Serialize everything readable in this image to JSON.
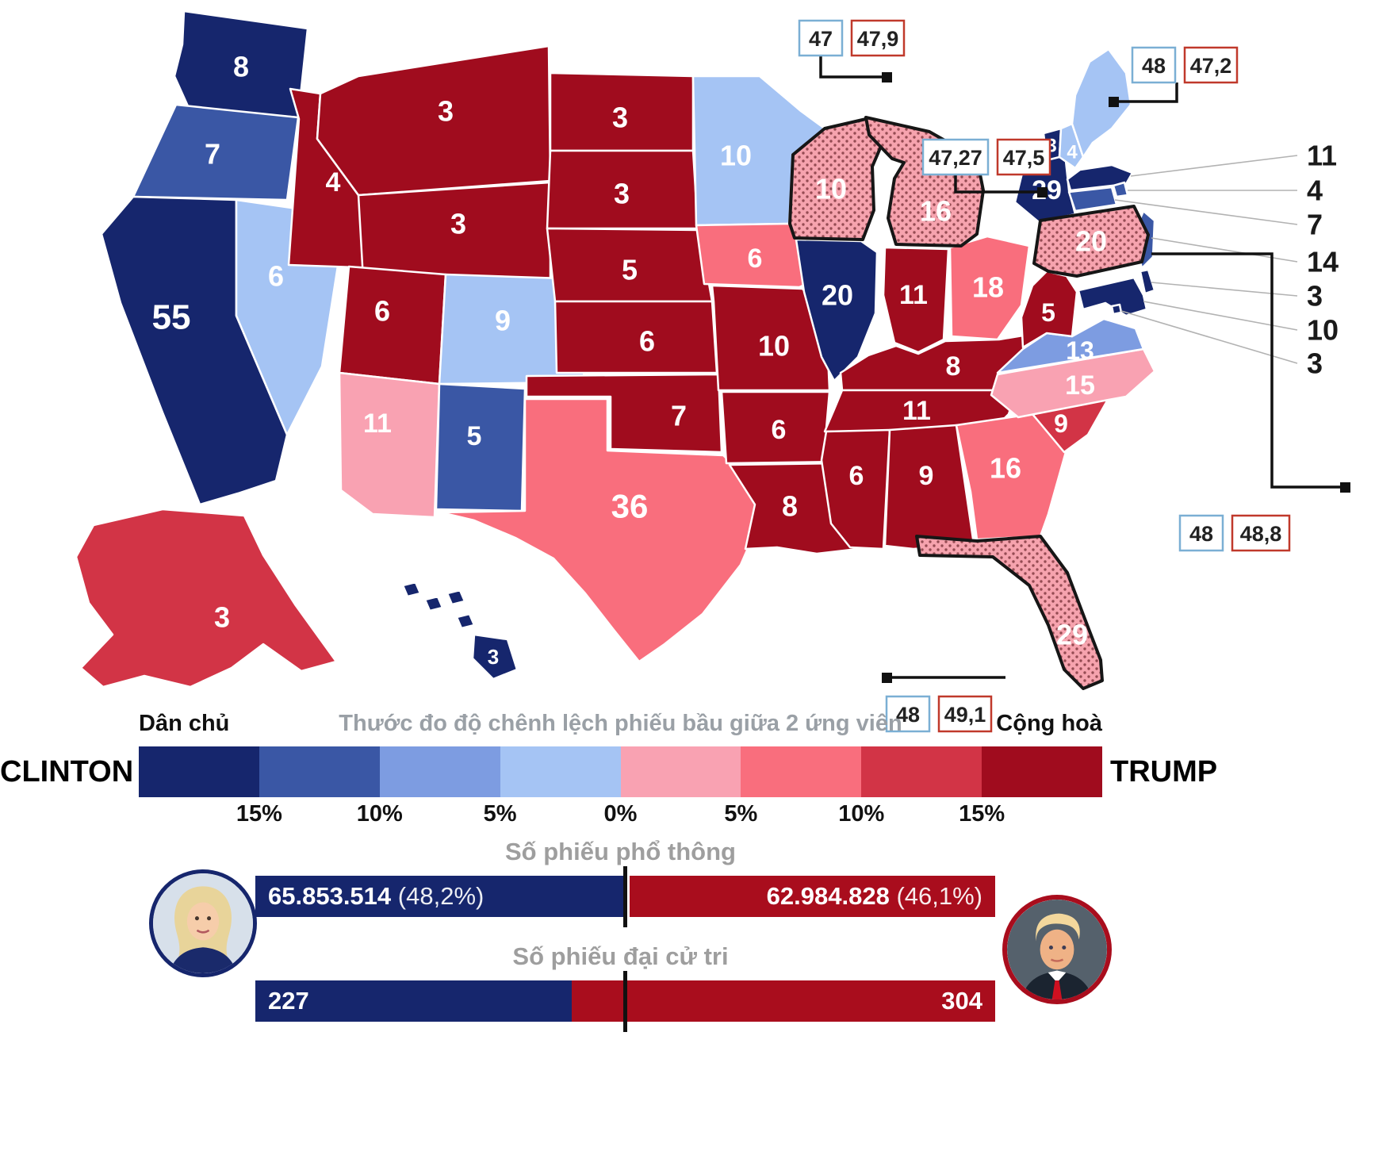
{
  "colors": {
    "dem_15": "#16266d",
    "dem_10": "#3a57a5",
    "dem_5": "#7d9ce1",
    "dem_0": "#a5c4f4",
    "rep_0": "#f9a2b2",
    "rep_5": "#f96e7d",
    "rep_10": "#d23446",
    "rep_15": "#a00c1e",
    "flip_base": "#f6a3ae",
    "flip_dot": "#551016",
    "clinton_bar": "#16266d",
    "trump_bar": "#a90d1d",
    "poll_box_clinton_border": "#7bafd4",
    "poll_box_trump_border": "#c0392b"
  },
  "map": {
    "states": [
      {
        "abbr": "WA",
        "name": "Washington",
        "ev": "8",
        "bucket": "dem_15"
      },
      {
        "abbr": "OR",
        "name": "Oregon",
        "ev": "7",
        "bucket": "dem_10"
      },
      {
        "abbr": "CA",
        "name": "California",
        "ev": "55",
        "bucket": "dem_15"
      },
      {
        "abbr": "NV",
        "name": "Nevada",
        "ev": "6",
        "bucket": "dem_0"
      },
      {
        "abbr": "ID",
        "name": "Idaho",
        "ev": "4",
        "bucket": "rep_15"
      },
      {
        "abbr": "MT",
        "name": "Montana",
        "ev": "3",
        "bucket": "rep_15"
      },
      {
        "abbr": "WY",
        "name": "Wyoming",
        "ev": "3",
        "bucket": "rep_15"
      },
      {
        "abbr": "UT",
        "name": "Utah",
        "ev": "6",
        "bucket": "rep_15"
      },
      {
        "abbr": "CO",
        "name": "Colorado",
        "ev": "9",
        "bucket": "dem_0"
      },
      {
        "abbr": "AZ",
        "name": "Arizona",
        "ev": "11",
        "bucket": "rep_0"
      },
      {
        "abbr": "NM",
        "name": "New Mexico",
        "ev": "5",
        "bucket": "dem_10"
      },
      {
        "abbr": "ND",
        "name": "North Dakota",
        "ev": "3",
        "bucket": "rep_15"
      },
      {
        "abbr": "SD",
        "name": "South Dakota",
        "ev": "3",
        "bucket": "rep_15"
      },
      {
        "abbr": "NE",
        "name": "Nebraska",
        "ev": "5",
        "bucket": "rep_15"
      },
      {
        "abbr": "KS",
        "name": "Kansas",
        "ev": "6",
        "bucket": "rep_15"
      },
      {
        "abbr": "OK",
        "name": "Oklahoma",
        "ev": "7",
        "bucket": "rep_15"
      },
      {
        "abbr": "TX",
        "name": "Texas",
        "ev": "36",
        "bucket": "rep_5"
      },
      {
        "abbr": "MN",
        "name": "Minnesota",
        "ev": "10",
        "bucket": "dem_0"
      },
      {
        "abbr": "IA",
        "name": "Iowa",
        "ev": "6",
        "bucket": "rep_5"
      },
      {
        "abbr": "MO",
        "name": "Missouri",
        "ev": "10",
        "bucket": "rep_15"
      },
      {
        "abbr": "AR",
        "name": "Arkansas",
        "ev": "6",
        "bucket": "rep_15"
      },
      {
        "abbr": "LA",
        "name": "Louisiana",
        "ev": "8",
        "bucket": "rep_15"
      },
      {
        "abbr": "IL",
        "name": "Illinois",
        "ev": "20",
        "bucket": "dem_15"
      },
      {
        "abbr": "IN",
        "name": "Indiana",
        "ev": "11",
        "bucket": "rep_15"
      },
      {
        "abbr": "OH",
        "name": "Ohio",
        "ev": "18",
        "bucket": "rep_5"
      },
      {
        "abbr": "KY",
        "name": "Kentucky",
        "ev": "8",
        "bucket": "rep_15"
      },
      {
        "abbr": "TN",
        "name": "Tennessee",
        "ev": "11",
        "bucket": "rep_15"
      },
      {
        "abbr": "MS",
        "name": "Mississippi",
        "ev": "6",
        "bucket": "rep_15"
      },
      {
        "abbr": "AL",
        "name": "Alabama",
        "ev": "9",
        "bucket": "rep_15"
      },
      {
        "abbr": "GA",
        "name": "Georgia",
        "ev": "16",
        "bucket": "rep_5"
      },
      {
        "abbr": "SC",
        "name": "South Carolina",
        "ev": "9",
        "bucket": "rep_10"
      },
      {
        "abbr": "NC",
        "name": "North Carolina",
        "ev": "15",
        "bucket": "rep_0"
      },
      {
        "abbr": "VA",
        "name": "Virginia",
        "ev": "13",
        "bucket": "dem_5"
      },
      {
        "abbr": "WV",
        "name": "West Virginia",
        "ev": "5",
        "bucket": "rep_15"
      },
      {
        "abbr": "NY",
        "name": "New York",
        "ev": "29",
        "bucket": "dem_15"
      },
      {
        "abbr": "VT",
        "name": "Vermont",
        "ev": "3",
        "bucket": "dem_15"
      },
      {
        "abbr": "NH",
        "name": "New Hampshire",
        "ev": "4",
        "bucket": "dem_0"
      },
      {
        "abbr": "ME",
        "name": "Maine",
        "ev": "",
        "bucket": "dem_0"
      },
      {
        "abbr": "MA",
        "name": "Massachusetts",
        "ev": "",
        "bucket": "dem_15"
      },
      {
        "abbr": "RI",
        "name": "Rhode Island",
        "ev": "",
        "bucket": "dem_10"
      },
      {
        "abbr": "CT",
        "name": "Connecticut",
        "ev": "",
        "bucket": "dem_10"
      },
      {
        "abbr": "NJ",
        "name": "New Jersey",
        "ev": "",
        "bucket": "dem_10"
      },
      {
        "abbr": "DE",
        "name": "Delaware",
        "ev": "",
        "bucket": "dem_15"
      },
      {
        "abbr": "MD",
        "name": "Maryland",
        "ev": "",
        "bucket": "dem_15"
      },
      {
        "abbr": "DC",
        "name": "District of Columbia",
        "ev": "",
        "bucket": "dem_15"
      },
      {
        "abbr": "AK",
        "name": "Alaska",
        "ev": "3",
        "bucket": "rep_10"
      },
      {
        "abbr": "HI",
        "name": "Hawaii",
        "ev": "3",
        "bucket": "dem_15"
      },
      {
        "abbr": "WI",
        "name": "Wisconsin",
        "ev": "10",
        "bucket": "flip"
      },
      {
        "abbr": "MI",
        "name": "Michigan",
        "ev": "16",
        "bucket": "flip"
      },
      {
        "abbr": "PA",
        "name": "Pennsylvania",
        "ev": "20",
        "bucket": "flip"
      },
      {
        "abbr": "FL",
        "name": "Florida",
        "ev": "29",
        "bucket": "flip"
      }
    ],
    "small_state_list": [
      {
        "value": "11",
        "state": "MA"
      },
      {
        "value": "4",
        "state": "RI"
      },
      {
        "value": "7",
        "state": "CT"
      },
      {
        "value": "14",
        "state": "NJ"
      },
      {
        "value": "3",
        "state": "DE"
      },
      {
        "value": "10",
        "state": "MD"
      },
      {
        "value": "3",
        "state": "DC"
      }
    ],
    "callouts": [
      {
        "state": "WI",
        "clinton": "47",
        "trump": "47,9"
      },
      {
        "state": "NH",
        "clinton": "48",
        "trump": "47,2"
      },
      {
        "state": "MI",
        "clinton": "47,27",
        "trump": "47,5"
      },
      {
        "state": "PA",
        "clinton": "48",
        "trump": "48,8"
      },
      {
        "state": "FL",
        "clinton": "48",
        "trump": "49,1"
      }
    ]
  },
  "legend": {
    "left_party": "Dân chủ",
    "right_party": "Cộng hoà",
    "title": "Thước đo độ chênh lệch phiếu bầu giữa 2 ứng viên",
    "left_candidate": "CLINTON",
    "right_candidate": "TRUMP",
    "ticks": [
      "15%",
      "10%",
      "5%",
      "0%",
      "5%",
      "10%",
      "15%"
    ],
    "segments": [
      "dem_15",
      "dem_10",
      "dem_5",
      "dem_0",
      "rep_0",
      "rep_5",
      "rep_10",
      "rep_15"
    ]
  },
  "popular_vote": {
    "title": "Số phiếu phổ thông",
    "clinton": {
      "votes": "65.853.514",
      "percent": "(48,2%)"
    },
    "trump": {
      "votes": "62.984.828",
      "percent": "(46,1%)"
    }
  },
  "electoral_vote": {
    "title": "Số phiếu đại cử tri",
    "clinton": "227",
    "trump": "304"
  }
}
